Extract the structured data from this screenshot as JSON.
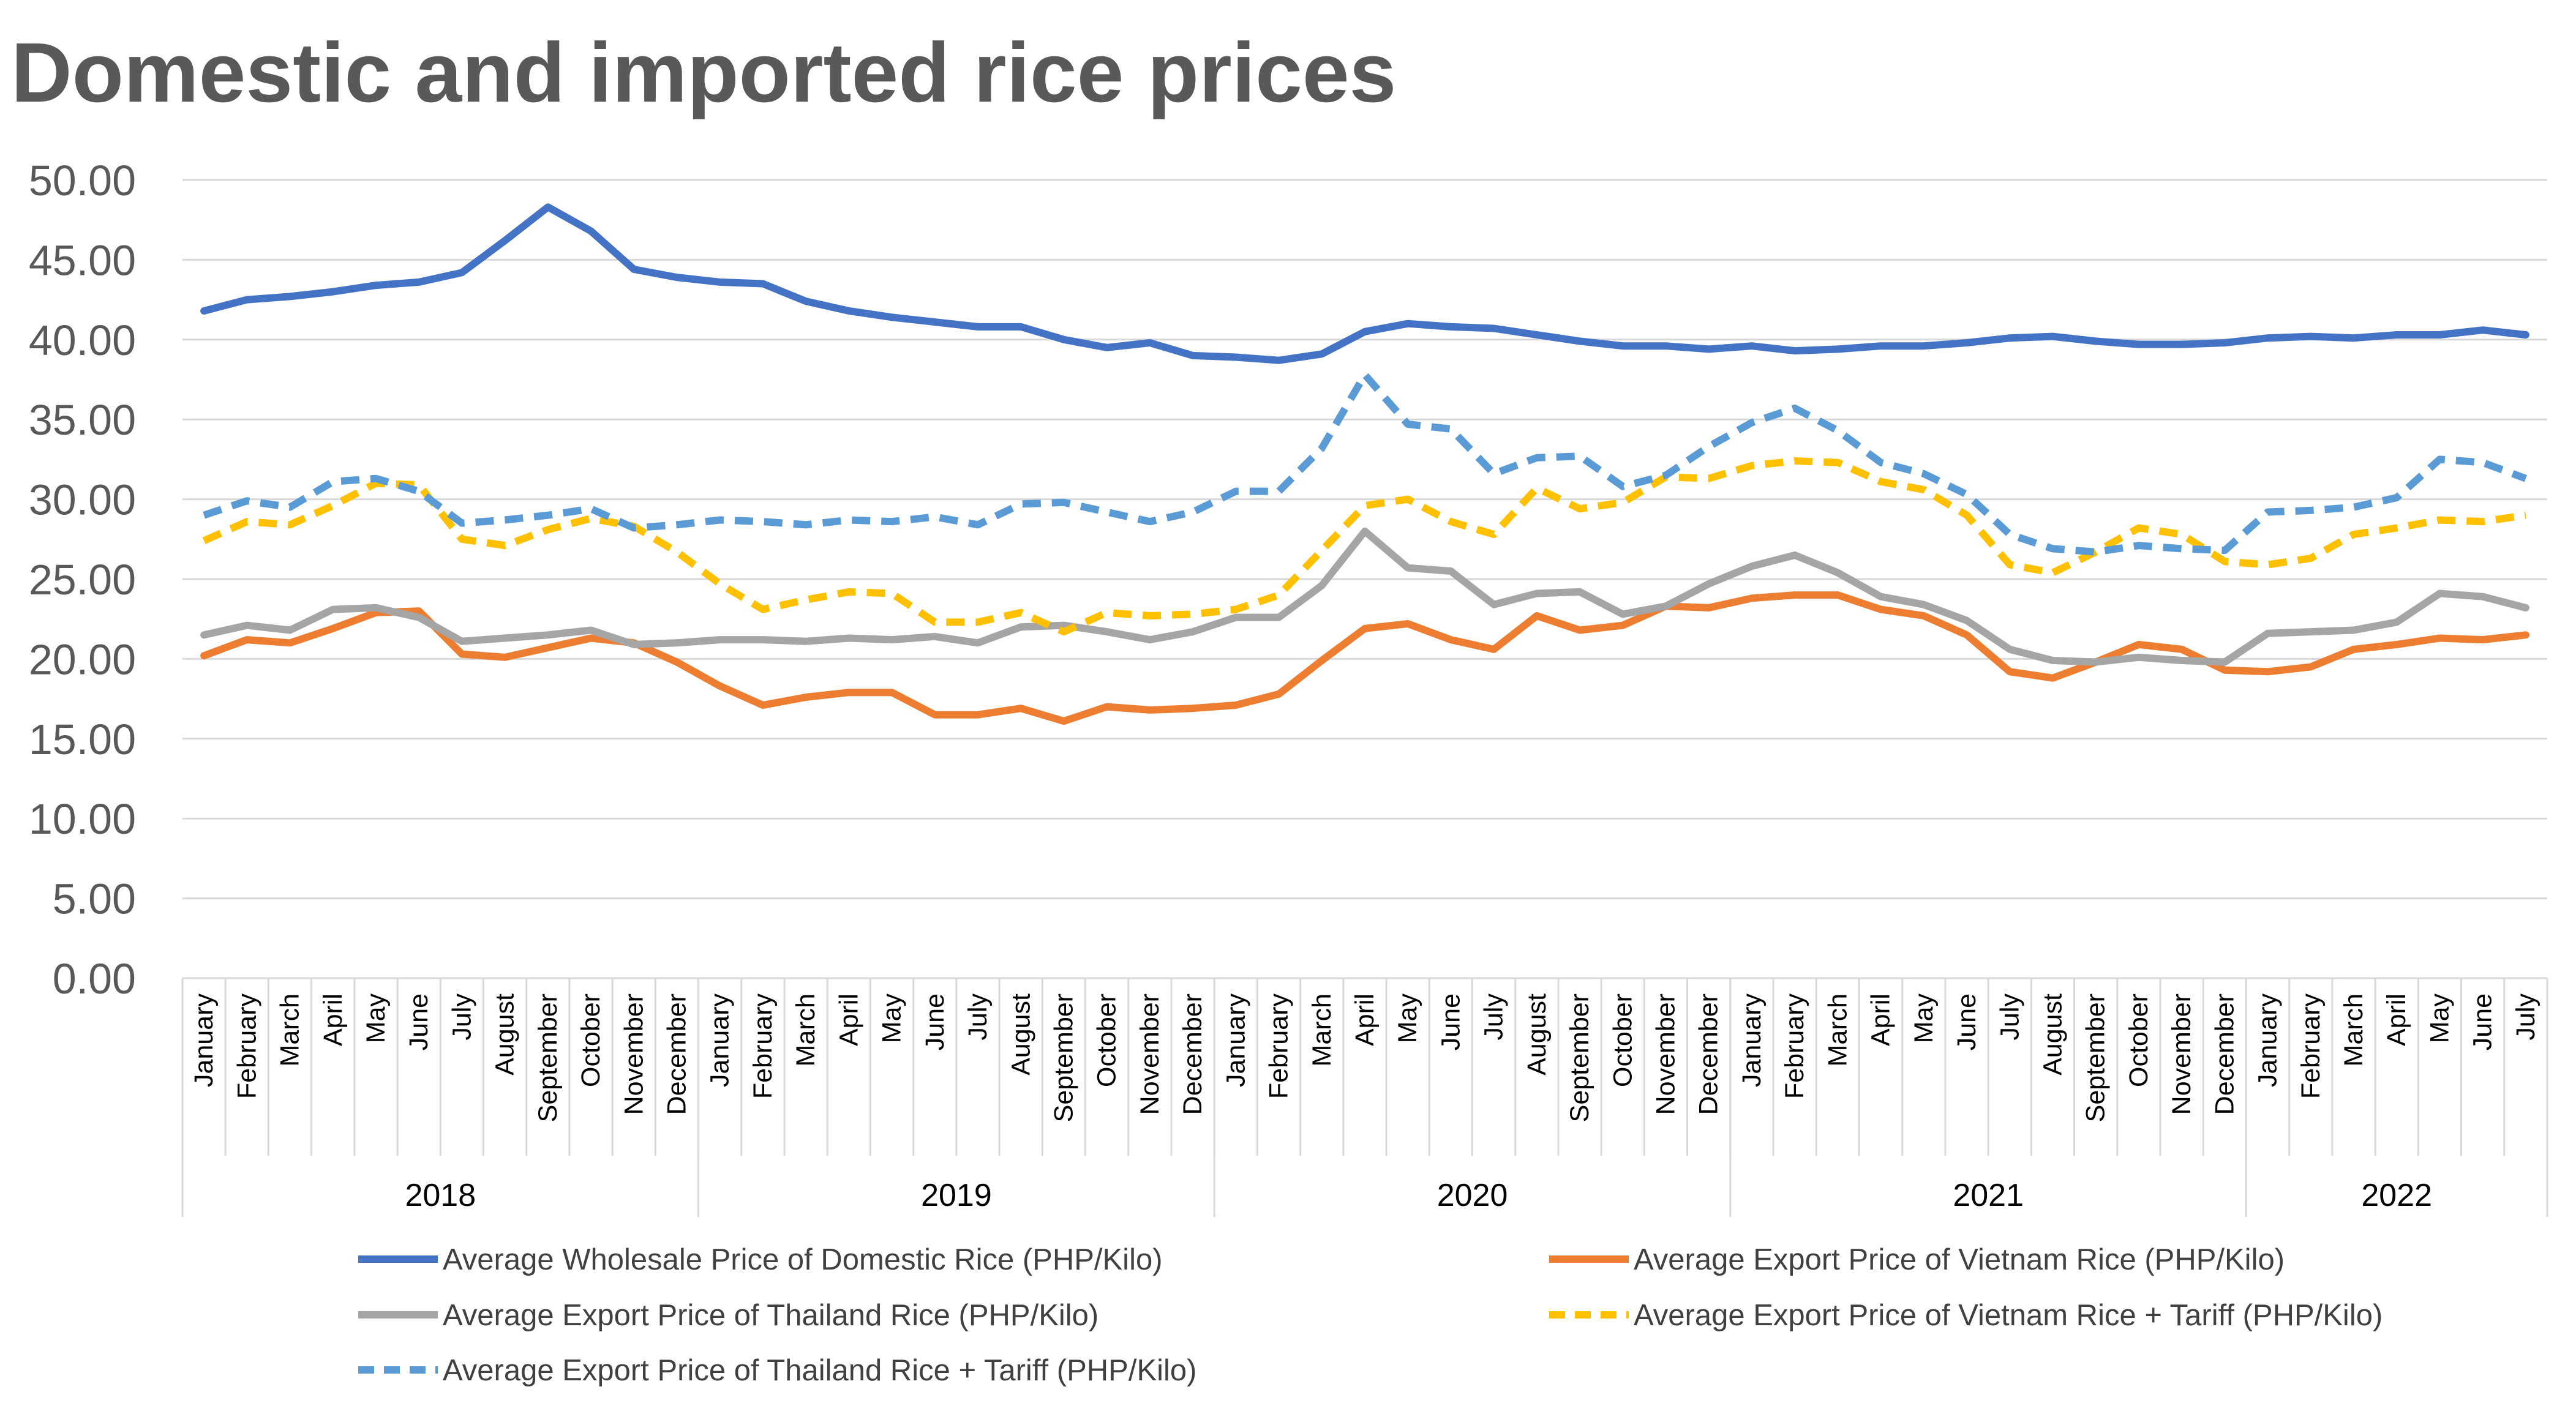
{
  "chart_data": {
    "type": "line",
    "title": "Domestic and imported rice prices",
    "ylim": [
      0,
      50
    ],
    "y_ticks": [
      "0.00",
      "5.00",
      "10.00",
      "15.00",
      "20.00",
      "25.00",
      "30.00",
      "35.00",
      "40.00",
      "45.00",
      "50.00"
    ],
    "grid": true,
    "legend_position": "bottom",
    "years": [
      {
        "label": "2018",
        "months": [
          "January",
          "February",
          "March",
          "April",
          "May",
          "June",
          "July",
          "August",
          "September",
          "October",
          "November",
          "December"
        ]
      },
      {
        "label": "2019",
        "months": [
          "January",
          "February",
          "March",
          "April",
          "May",
          "June",
          "July",
          "August",
          "September",
          "October",
          "November",
          "December"
        ]
      },
      {
        "label": "2020",
        "months": [
          "January",
          "February",
          "March",
          "April",
          "May",
          "June",
          "July",
          "August",
          "September",
          "October",
          "November",
          "December"
        ]
      },
      {
        "label": "2021",
        "months": [
          "January",
          "February",
          "March",
          "April",
          "May",
          "June",
          "July",
          "August",
          "September",
          "October",
          "November",
          "December"
        ]
      },
      {
        "label": "2022",
        "months": [
          "January",
          "February",
          "March",
          "April",
          "May",
          "June",
          "July"
        ]
      }
    ],
    "series": [
      {
        "name": "Average Wholesale Price of Domestic Rice (PHP/Kilo)",
        "color": "#4472C4",
        "dash": "solid",
        "values": [
          41.8,
          42.5,
          42.7,
          43.0,
          43.4,
          43.6,
          44.2,
          46.2,
          48.3,
          46.8,
          44.4,
          43.9,
          43.6,
          43.5,
          42.4,
          41.8,
          41.4,
          41.1,
          40.8,
          40.8,
          40.0,
          39.5,
          39.8,
          39.0,
          38.9,
          38.7,
          39.1,
          40.5,
          41.0,
          40.8,
          40.7,
          40.3,
          39.9,
          39.6,
          39.6,
          39.4,
          39.6,
          39.3,
          39.4,
          39.6,
          39.6,
          39.8,
          40.1,
          40.2,
          39.9,
          39.7,
          39.7,
          39.8,
          40.1,
          40.2,
          40.1,
          40.3,
          40.3,
          40.6,
          40.3
        ]
      },
      {
        "name": "Average Export Price of Vietnam Rice (PHP/Kilo)",
        "color": "#ED7D31",
        "dash": "solid",
        "values": [
          20.2,
          21.2,
          21.0,
          21.9,
          22.9,
          23.0,
          20.3,
          20.1,
          20.7,
          21.3,
          21.0,
          19.8,
          18.3,
          17.1,
          17.6,
          17.9,
          17.9,
          16.5,
          16.5,
          16.9,
          16.1,
          17.0,
          16.8,
          16.9,
          17.1,
          17.8,
          19.9,
          21.9,
          22.2,
          21.2,
          20.6,
          22.7,
          21.8,
          22.1,
          23.3,
          23.2,
          23.8,
          24.0,
          24.0,
          23.1,
          22.7,
          21.5,
          19.2,
          18.8,
          19.8,
          20.9,
          20.6,
          19.3,
          19.2,
          19.5,
          20.6,
          20.9,
          21.3,
          21.2,
          21.5
        ]
      },
      {
        "name": "Average Export Price of Thailand Rice (PHP/Kilo)",
        "color": "#A5A5A5",
        "dash": "solid",
        "values": [
          21.5,
          22.1,
          21.8,
          23.1,
          23.2,
          22.6,
          21.1,
          21.3,
          21.5,
          21.8,
          20.9,
          21.0,
          21.2,
          21.2,
          21.1,
          21.3,
          21.2,
          21.4,
          21.0,
          22.0,
          22.1,
          21.7,
          21.2,
          21.7,
          22.6,
          22.6,
          24.6,
          28.0,
          25.7,
          25.5,
          23.4,
          24.1,
          24.2,
          22.8,
          23.3,
          24.7,
          25.8,
          26.5,
          25.4,
          23.9,
          23.4,
          22.4,
          20.6,
          19.9,
          19.8,
          20.1,
          19.9,
          19.8,
          21.6,
          21.7,
          21.8,
          22.3,
          24.1,
          23.9,
          23.2
        ]
      },
      {
        "name": "Average Export Price of Vietnam Rice + Tariff (PHP/Kilo)",
        "color": "#FFC000",
        "dash": "dashed",
        "values": [
          27.4,
          28.6,
          28.4,
          29.6,
          31.0,
          30.9,
          27.5,
          27.1,
          28.1,
          28.8,
          28.3,
          26.7,
          24.7,
          23.1,
          23.7,
          24.2,
          24.1,
          22.3,
          22.3,
          22.9,
          21.7,
          22.9,
          22.7,
          22.8,
          23.1,
          24.0,
          26.8,
          29.6,
          30.0,
          28.6,
          27.8,
          30.7,
          29.4,
          29.8,
          31.4,
          31.3,
          32.1,
          32.4,
          32.3,
          31.1,
          30.6,
          29.0,
          25.9,
          25.4,
          26.7,
          28.2,
          27.8,
          26.1,
          25.9,
          26.3,
          27.8,
          28.2,
          28.7,
          28.6,
          29.0
        ]
      },
      {
        "name": "Average Export Price of Thailand Rice + Tariff (PHP/Kilo)",
        "color": "#5B9BD5",
        "dash": "dashed",
        "values": [
          29.0,
          29.9,
          29.5,
          31.1,
          31.3,
          30.5,
          28.5,
          28.7,
          29.0,
          29.4,
          28.2,
          28.4,
          28.7,
          28.6,
          28.4,
          28.7,
          28.6,
          28.9,
          28.4,
          29.7,
          29.8,
          29.2,
          28.6,
          29.2,
          30.5,
          30.5,
          33.2,
          37.8,
          34.7,
          34.4,
          31.6,
          32.6,
          32.7,
          30.8,
          31.5,
          33.3,
          34.8,
          35.7,
          34.3,
          32.3,
          31.6,
          30.3,
          27.8,
          26.9,
          26.7,
          27.1,
          26.9,
          26.8,
          29.2,
          29.3,
          29.5,
          30.1,
          32.5,
          32.3,
          31.3
        ]
      }
    ]
  }
}
